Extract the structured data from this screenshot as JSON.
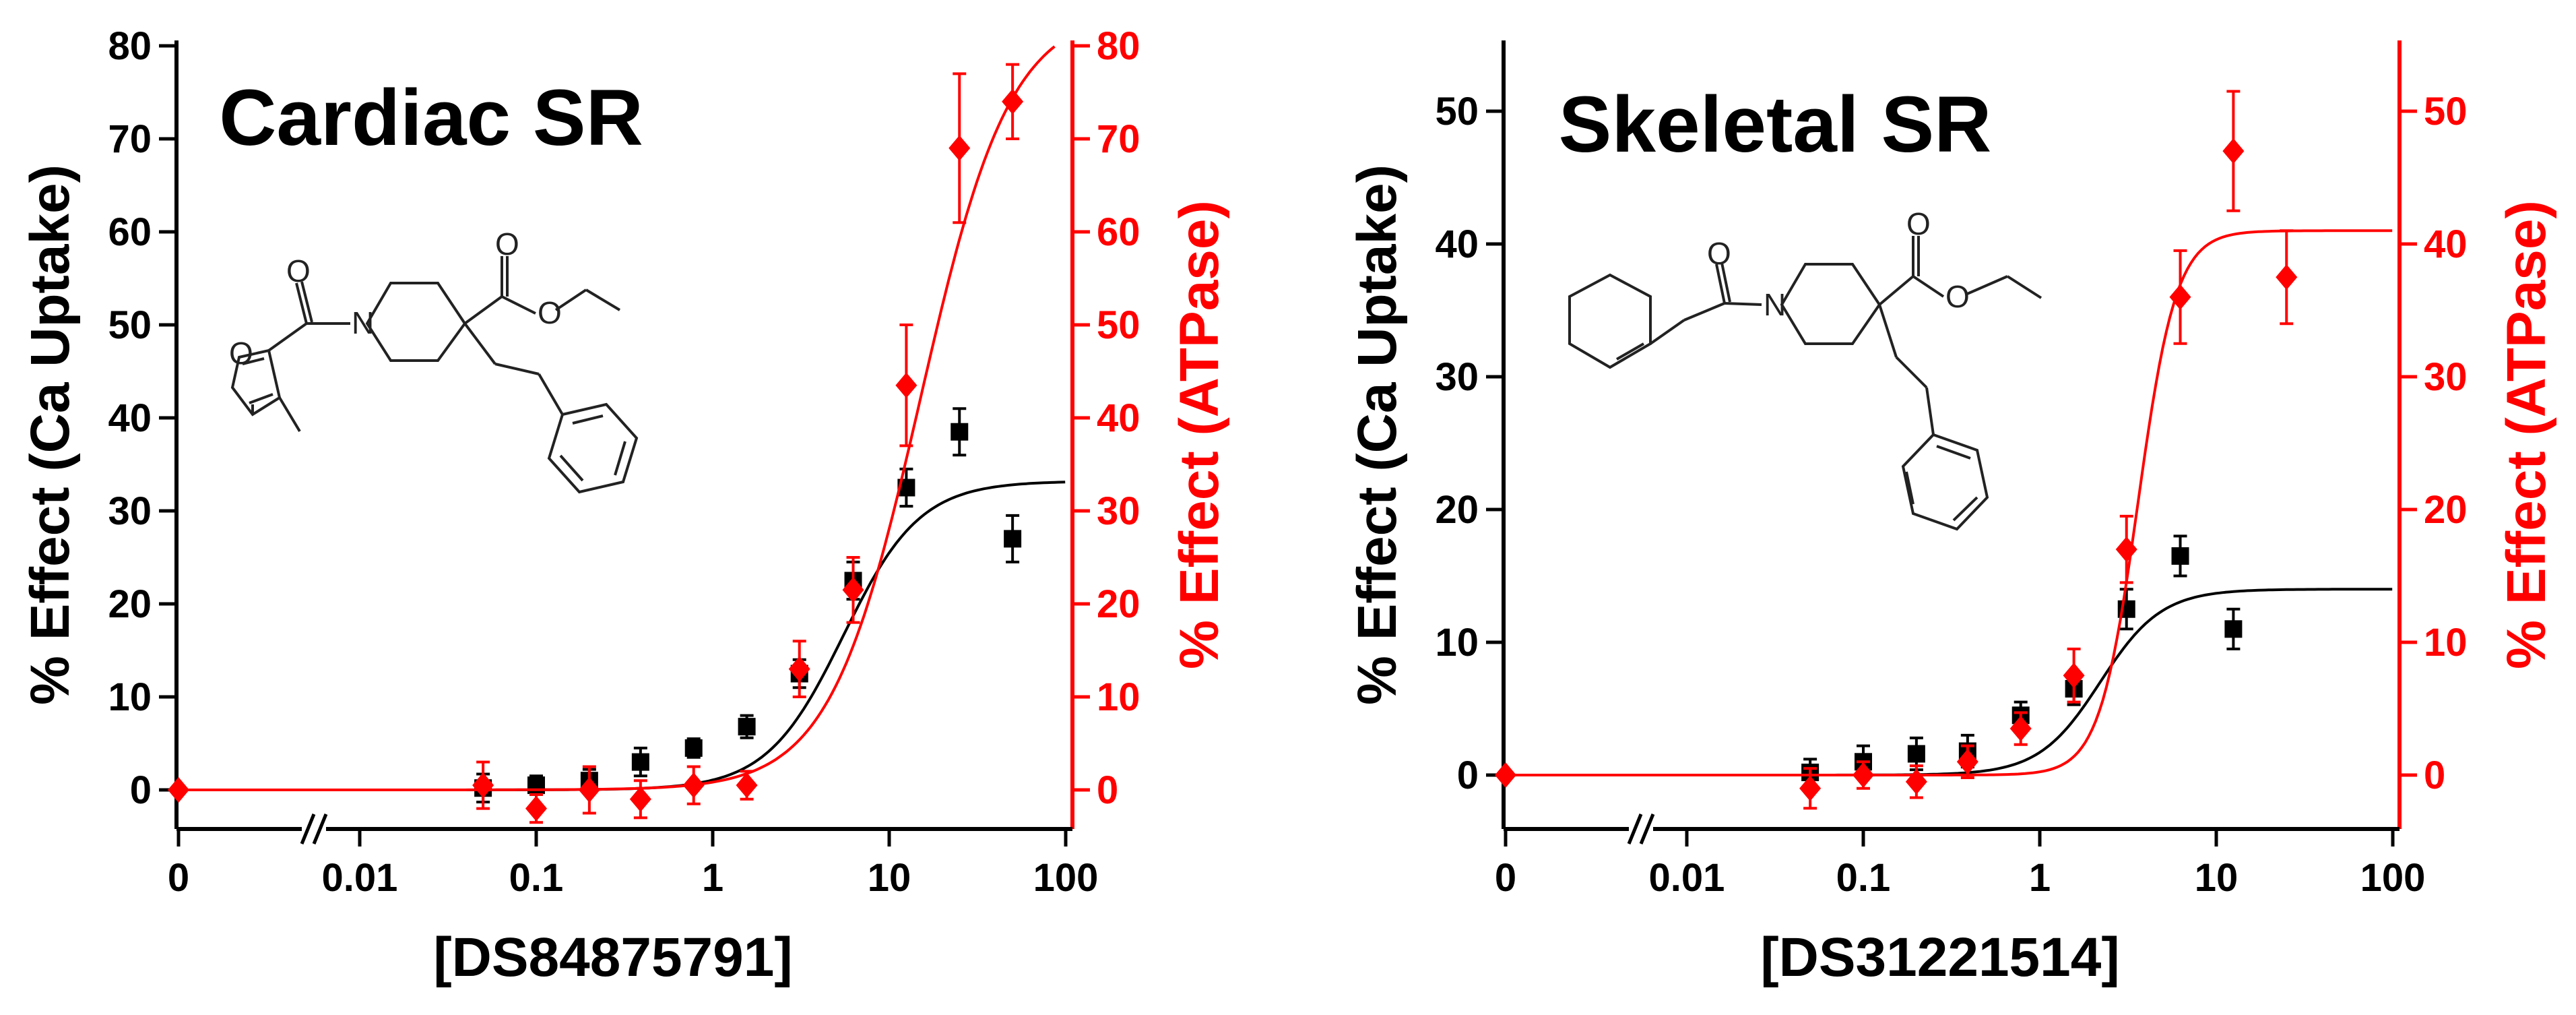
{
  "chart_data": [
    {
      "type": "scatter",
      "title": "Cardiac  SR",
      "xlabel": "[DS84875791]",
      "ylabel_left": "% Effect (Ca Uptake)",
      "ylabel_right": "% Effect (ATPase)",
      "x_scale": "log, broken axis (0 then 0.01 to 100)",
      "x_tick_labels": [
        "0",
        "0.01",
        "0.1",
        "1",
        "10",
        "100"
      ],
      "ylim_left": [
        -5,
        80
      ],
      "ylim_right": [
        -5,
        80
      ],
      "yticks_left": [
        "0",
        "10",
        "20",
        "30",
        "40",
        "50",
        "60",
        "70",
        "80"
      ],
      "yticks_right": [
        "0",
        "10",
        "20",
        "30",
        "40",
        "50",
        "60",
        "70",
        "80"
      ],
      "colors": {
        "ca_uptake": "#000000",
        "atpase": "#ff0000"
      },
      "series": [
        {
          "name": "Ca Uptake",
          "axis": "left",
          "marker": "square",
          "points": [
            {
              "x": 0.05,
              "y": 0.2,
              "err": 1.5
            },
            {
              "x": 0.1,
              "y": 0.5,
              "err": 1.0
            },
            {
              "x": 0.2,
              "y": 1.0,
              "err": 1.2
            },
            {
              "x": 0.39,
              "y": 3.0,
              "err": 1.5
            },
            {
              "x": 0.78,
              "y": 4.5,
              "err": 1.0
            },
            {
              "x": 1.56,
              "y": 6.8,
              "err": 1.2
            },
            {
              "x": 3.1,
              "y": 12.5,
              "err": 1.5
            },
            {
              "x": 6.25,
              "y": 22.5,
              "err": 2.0
            },
            {
              "x": 12.5,
              "y": 32.5,
              "err": 2.0
            },
            {
              "x": 25,
              "y": 38.5,
              "err": 2.5
            },
            {
              "x": 50,
              "y": 27.0,
              "err": 2.5
            }
          ],
          "fit": {
            "bottom": 0,
            "top": 33.2,
            "ec50": 5.5,
            "hill": 2.0
          }
        },
        {
          "name": "ATPase",
          "axis": "right",
          "marker": "diamond",
          "points": [
            {
              "x": 0,
              "y": 0,
              "err": 0
            },
            {
              "x": 0.05,
              "y": 0.5,
              "err": 2.5
            },
            {
              "x": 0.1,
              "y": -2.0,
              "err": 1.5
            },
            {
              "x": 0.2,
              "y": 0.0,
              "err": 2.5
            },
            {
              "x": 0.39,
              "y": -1.0,
              "err": 2.0
            },
            {
              "x": 0.78,
              "y": 0.5,
              "err": 2.0
            },
            {
              "x": 1.56,
              "y": 0.5,
              "err": 1.5
            },
            {
              "x": 3.1,
              "y": 13.0,
              "err": 3.0
            },
            {
              "x": 6.25,
              "y": 21.5,
              "err": 3.5
            },
            {
              "x": 12.5,
              "y": 43.5,
              "err": 6.5
            },
            {
              "x": 25,
              "y": 69.0,
              "err": 8.0
            },
            {
              "x": 50,
              "y": 74.0,
              "err": 4.0
            }
          ],
          "fit": {
            "bottom": 0,
            "top": 84,
            "ec50": 15,
            "hill": 1.7
          }
        }
      ]
    },
    {
      "type": "scatter",
      "title": "Skeletal  SR",
      "xlabel": "[DS31221514]",
      "ylabel_left": "% Effect (Ca Uptake)",
      "ylabel_right": "% Effect (ATPase)",
      "x_scale": "log, broken axis (0 then 0.01 to 100)",
      "x_tick_labels": [
        "0",
        "0.01",
        "0.1",
        "1",
        "10",
        "100"
      ],
      "ylim_left": [
        -5,
        55
      ],
      "ylim_right": [
        -5,
        55
      ],
      "yticks_left": [
        "0",
        "10",
        "20",
        "30",
        "40",
        "50"
      ],
      "yticks_right": [
        "0",
        "10",
        "20",
        "30",
        "40",
        "50"
      ],
      "colors": {
        "ca_uptake": "#000000",
        "atpase": "#ff0000"
      },
      "series": [
        {
          "name": "Ca Uptake",
          "axis": "left",
          "marker": "square",
          "points": [
            {
              "x": 0.05,
              "y": 0.2,
              "err": 1.0
            },
            {
              "x": 0.1,
              "y": 1.0,
              "err": 1.2
            },
            {
              "x": 0.2,
              "y": 1.6,
              "err": 1.2
            },
            {
              "x": 0.39,
              "y": 1.8,
              "err": 1.2
            },
            {
              "x": 0.78,
              "y": 4.5,
              "err": 1.0
            },
            {
              "x": 1.56,
              "y": 6.5,
              "err": 1.2
            },
            {
              "x": 3.1,
              "y": 12.5,
              "err": 1.5
            },
            {
              "x": 6.25,
              "y": 16.5,
              "err": 1.5
            },
            {
              "x": 12.5,
              "y": 11.0,
              "err": 1.5
            }
          ],
          "fit": {
            "bottom": 0,
            "top": 14,
            "ec50": 2.2,
            "hill": 2.5
          }
        },
        {
          "name": "ATPase",
          "axis": "right",
          "marker": "diamond",
          "points": [
            {
              "x": 0,
              "y": 0,
              "err": 0
            },
            {
              "x": 0.05,
              "y": -1.0,
              "err": 1.5
            },
            {
              "x": 0.1,
              "y": 0.0,
              "err": 1.0
            },
            {
              "x": 0.2,
              "y": -0.5,
              "err": 1.2
            },
            {
              "x": 0.39,
              "y": 1.0,
              "err": 1.2
            },
            {
              "x": 0.78,
              "y": 3.5,
              "err": 1.2
            },
            {
              "x": 1.56,
              "y": 7.5,
              "err": 2.0
            },
            {
              "x": 3.1,
              "y": 17.0,
              "err": 2.5
            },
            {
              "x": 6.25,
              "y": 36.0,
              "err": 3.5
            },
            {
              "x": 12.5,
              "y": 47.0,
              "err": 4.5
            },
            {
              "x": 25,
              "y": 37.5,
              "err": 3.5
            }
          ],
          "fit": {
            "bottom": 0,
            "top": 41,
            "ec50": 3.6,
            "hill": 4.0
          }
        }
      ]
    }
  ]
}
